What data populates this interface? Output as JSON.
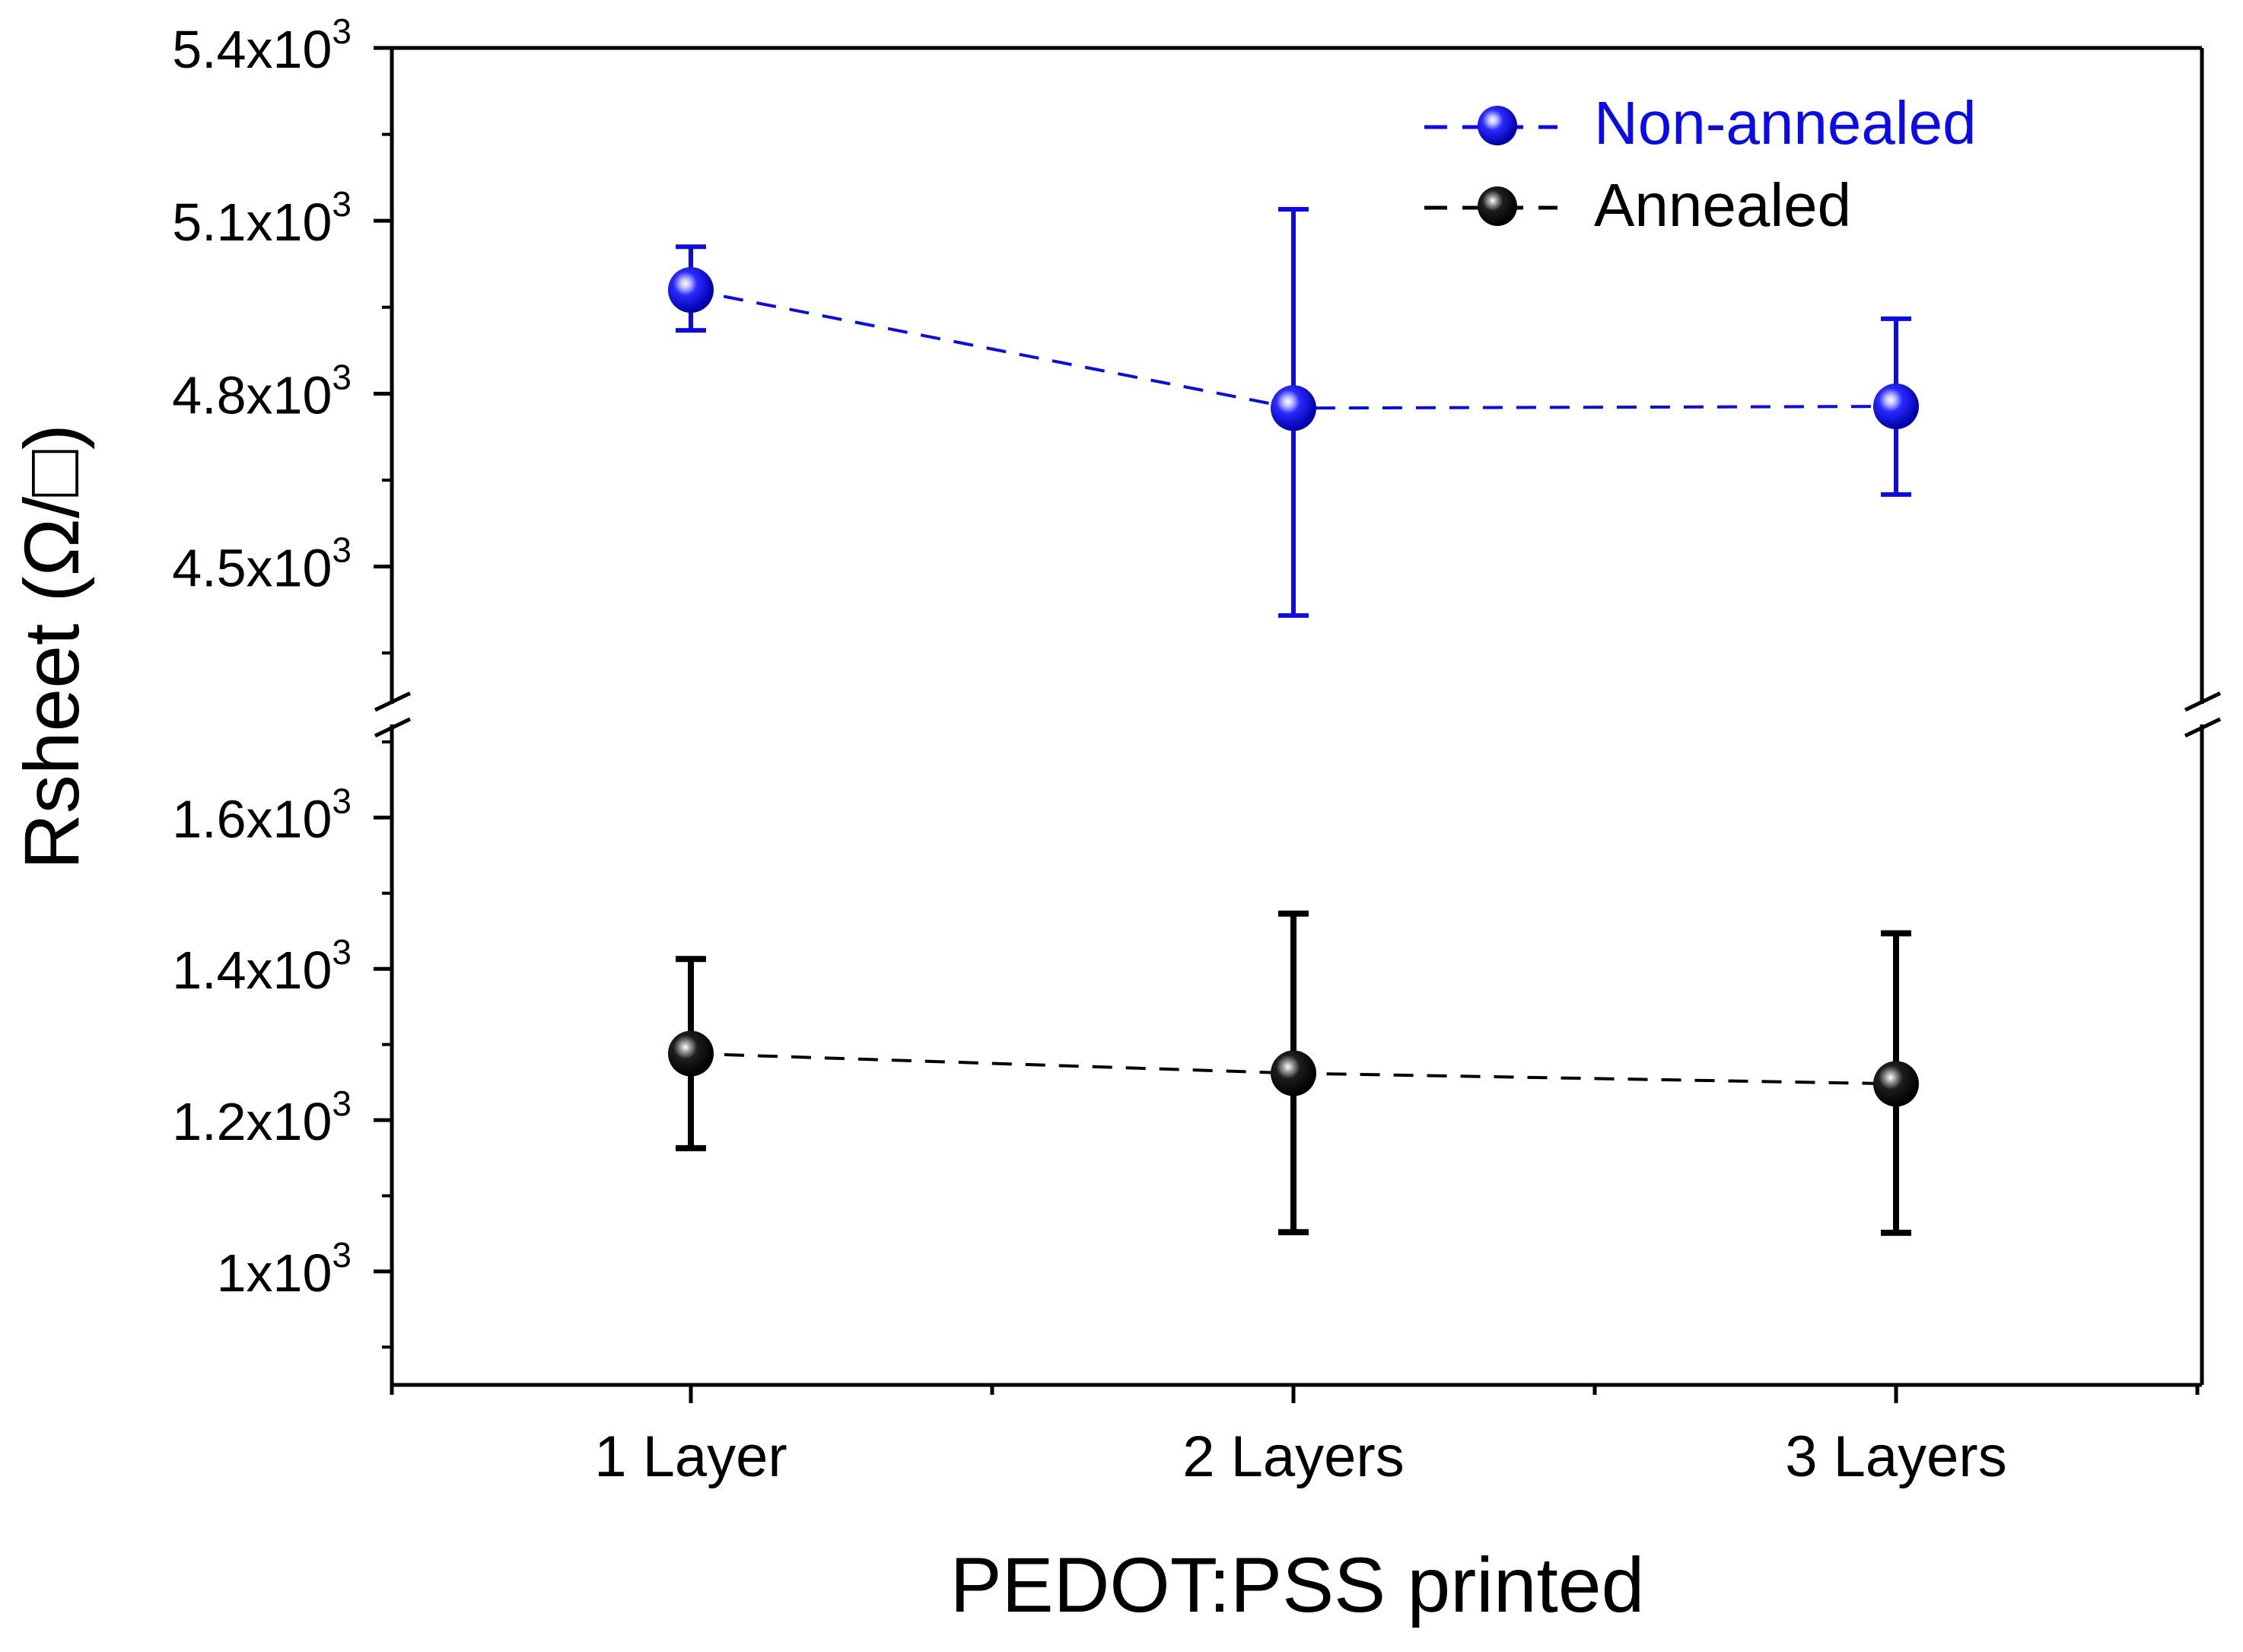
{
  "chart_data": {
    "type": "scatter",
    "title": "",
    "xlabel": "PEDOT:PSS printed",
    "ylabel": "Rsheet",
    "ylabel_unit": "(Ω/□)",
    "categories": [
      "1 Layer",
      "2 Layers",
      "3 Layers"
    ],
    "y_break": true,
    "upper_segment": {
      "ylim": [
        4300,
        5400
      ],
      "ticks": [
        {
          "value": 4500,
          "mantissa": "4.5x10",
          "exp": "3"
        },
        {
          "value": 4800,
          "mantissa": "4.8x10",
          "exp": "3"
        },
        {
          "value": 5100,
          "mantissa": "5.1x10",
          "exp": "3"
        },
        {
          "value": 5400,
          "mantissa": "5.4x10",
          "exp": "3"
        }
      ],
      "minor_step": 150
    },
    "lower_segment": {
      "ylim": [
        850,
        1700
      ],
      "ticks": [
        {
          "value": 1000,
          "mantissa": "1x10",
          "exp": "3"
        },
        {
          "value": 1200,
          "mantissa": "1.2x10",
          "exp": "3"
        },
        {
          "value": 1400,
          "mantissa": "1.4x10",
          "exp": "3"
        },
        {
          "value": 1600,
          "mantissa": "1.6x10",
          "exp": "3"
        }
      ],
      "minor_step": 100
    },
    "series": [
      {
        "name": "Non-annealed",
        "color": "#0b0bea",
        "segment": "upper",
        "values": [
          4980,
          4775,
          4778
        ],
        "err_low": [
          4910,
          4415,
          4625
        ],
        "err_high": [
          5055,
          5120,
          4930
        ]
      },
      {
        "name": "Annealed",
        "color": "#000000",
        "segment": "lower",
        "values": [
          1288,
          1262,
          1248
        ],
        "err_low": [
          1163,
          1052,
          1051
        ],
        "err_high": [
          1413,
          1473,
          1447
        ]
      }
    ],
    "legend_position": "top-right",
    "grid": false
  }
}
